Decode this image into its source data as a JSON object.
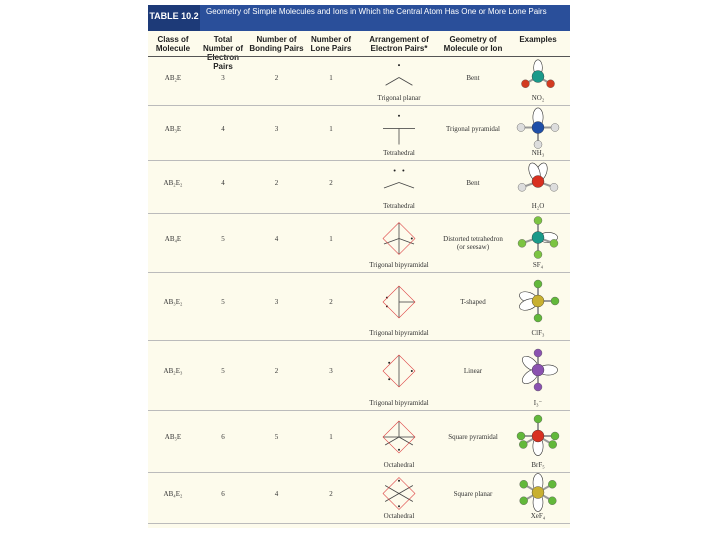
{
  "header": {
    "label": "TABLE 10.2",
    "title": "Geometry of Simple Molecules and Ions in Which the Central Atom Has One or More Lone Pairs"
  },
  "table": {
    "columns": [
      "Class of Molecule",
      "Total Number of Electron Pairs",
      "Number of Bonding Pairs",
      "Number of Lone Pairs",
      "Arrangement of Electron Pairs*",
      "Geometry of Molecule or Ion",
      "Examples"
    ],
    "rows": [
      [
        "AB₂E",
        3,
        2,
        1,
        "Trigonal planar",
        "Bent",
        "NO₂"
      ],
      [
        "AB₃E",
        4,
        3,
        1,
        "Tetrahedral",
        "Trigonal pyramidal",
        "NH₃"
      ],
      [
        "AB₂E₂",
        4,
        2,
        2,
        "Tetrahedral",
        "Bent",
        "H₂O"
      ],
      [
        "AB₄E",
        5,
        4,
        1,
        "Trigonal bipyramidal",
        "Distorted tetrahedron (or seesaw)",
        "SF₄"
      ],
      [
        "AB₃E₂",
        5,
        3,
        2,
        "Trigonal bipyramidal",
        "T-shaped",
        "ClF₃"
      ],
      [
        "AB₂E₃",
        5,
        2,
        3,
        "Trigonal bipyramidal",
        "Linear",
        "I₃⁻"
      ],
      [
        "AB₅E",
        6,
        5,
        1,
        "Octahedral",
        "Square pyramidal",
        "BrF₅"
      ],
      [
        "AB₄E₂",
        6,
        4,
        2,
        "Octahedral",
        "Square planar",
        "XeF₄"
      ]
    ]
  }
}
